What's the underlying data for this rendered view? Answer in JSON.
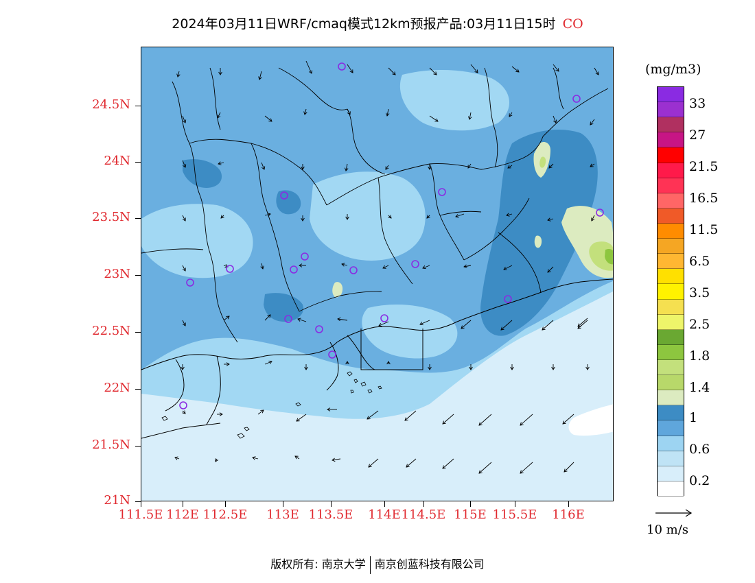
{
  "title": {
    "main": "2024年03月11日WRF/cmaq模式12km预报产品:03月11日15时",
    "species": "CO"
  },
  "axes": {
    "latitudes": [
      "24.5N",
      "24N",
      "23.5N",
      "23N",
      "22.5N",
      "22N",
      "21.5N",
      "21N"
    ],
    "longitudes": [
      "111.5E",
      "112E",
      "112.5E",
      "113E",
      "113.5E",
      "114E",
      "114.5E",
      "115E",
      "115.5E",
      "116E"
    ]
  },
  "legend": {
    "unit": "(mg/m3)",
    "labels": [
      "33",
      "27",
      "21.5",
      "16.5",
      "11.5",
      "6.5",
      "3.5",
      "2.5",
      "1.8",
      "1.4",
      "1",
      "0.6",
      "0.2"
    ],
    "colors": [
      "#8a2be2",
      "#9b30d0",
      "#b03060",
      "#c71585",
      "#ff0000",
      "#ff1a4a",
      "#ff3355",
      "#ff6666",
      "#f05a28",
      "#ff8c00",
      "#f5a623",
      "#ffb732",
      "#ffe000",
      "#fff200",
      "#f5e050",
      "#eef56a",
      "#6aa832",
      "#8dc63f",
      "#c3e07c",
      "#b8d86a",
      "#dcebc0",
      "#3d8cc4",
      "#5fa6dc",
      "#9dd4f2",
      "#bfe3f5",
      "#d8eefa",
      "#ffffff"
    ]
  },
  "wind_reference": {
    "label": "10 m/s"
  },
  "map": {
    "colors": {
      "sea_light": "#d8eefa",
      "light_blue": "#a2d8f3",
      "mid_blue": "#6aafe0",
      "dark_blue": "#3d8cc4",
      "pale_green": "#dcebc0",
      "light_green": "#c3e07c",
      "green": "#8dc63f",
      "station": "#8a2be2"
    }
  },
  "footer": {
    "copyright": "版权所有: 南京大学",
    "company": "南京创蓝科技有限公司"
  }
}
